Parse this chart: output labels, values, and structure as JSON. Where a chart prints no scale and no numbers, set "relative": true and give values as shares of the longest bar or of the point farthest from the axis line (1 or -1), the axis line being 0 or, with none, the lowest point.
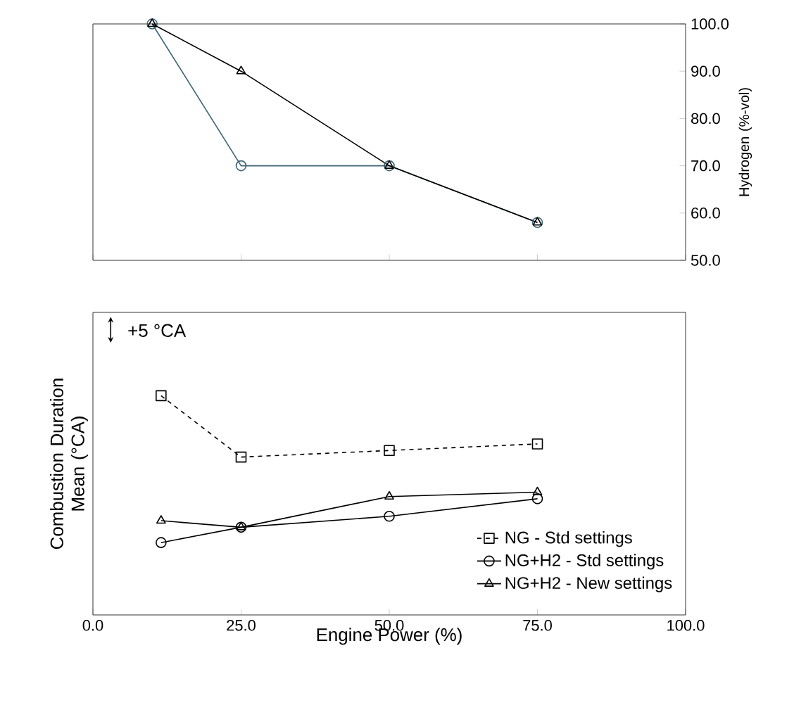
{
  "chart_data": [
    {
      "type": "line",
      "ylabel": "Hydrogen (%-vol)",
      "xlim": [
        0,
        100
      ],
      "xticks": [
        {
          "value": 0,
          "label": null
        },
        {
          "value": 25,
          "label": null
        },
        {
          "value": 50,
          "label": null
        },
        {
          "value": 75,
          "label": null
        },
        {
          "value": 100,
          "label": null
        }
      ],
      "ylim": [
        50,
        100
      ],
      "yticks": [
        {
          "value": 50,
          "label": "50.0"
        },
        {
          "value": 60,
          "label": "60.0"
        },
        {
          "value": 70,
          "label": "70.0"
        },
        {
          "value": 80,
          "label": "80.0"
        },
        {
          "value": 90,
          "label": "90.0"
        },
        {
          "value": 100,
          "label": "100.0"
        }
      ],
      "tick_labels": "y",
      "series": [
        {
          "color": "#3a6373",
          "marker": "circle",
          "line_style": "solid",
          "x": [
            10,
            25,
            50,
            75
          ],
          "values": [
            100,
            70,
            70,
            58
          ]
        },
        {
          "color": "#000000",
          "marker": "triangle",
          "line_style": "solid",
          "x": [
            10,
            25,
            50,
            75
          ],
          "values": [
            100,
            90,
            70,
            58
          ]
        }
      ]
    },
    {
      "type": "line",
      "relative": true,
      "xlabel": "Engine Power (%)",
      "ylabel": "Combustion Duration Mean (°CA)",
      "xlim": [
        0,
        100
      ],
      "xticks": [
        {
          "value": 0,
          "label": "0.0"
        },
        {
          "value": 25,
          "label": "25.0"
        },
        {
          "value": 50,
          "label": "50.0"
        },
        {
          "value": 75,
          "label": "75.0"
        },
        {
          "value": 100,
          "label": "100.0"
        }
      ],
      "tick_labels": "x",
      "legend": "bottom right",
      "annotations": [
        "+5 °CA"
      ],
      "series": [
        {
          "name": "NG - Std settings",
          "color": "#000000",
          "marker": "square",
          "line_style": "dashed",
          "x": [
            11.5,
            25,
            50,
            75
          ],
          "values": [
            1,
            0.72,
            0.75,
            0.78
          ]
        },
        {
          "name": "NG+H2 - Std settings",
          "color": "#000000",
          "marker": "circle",
          "line_style": "solid",
          "x": [
            11.5,
            25,
            50,
            75
          ],
          "values": [
            0.33,
            0.4,
            0.45,
            0.53
          ]
        },
        {
          "name": "NG+H2 - New settings",
          "color": "#000000",
          "marker": "triangle",
          "line_style": "solid",
          "x": [
            11.5,
            25,
            50,
            75
          ],
          "values": [
            0.43,
            0.4,
            0.54,
            0.56
          ]
        }
      ]
    }
  ]
}
